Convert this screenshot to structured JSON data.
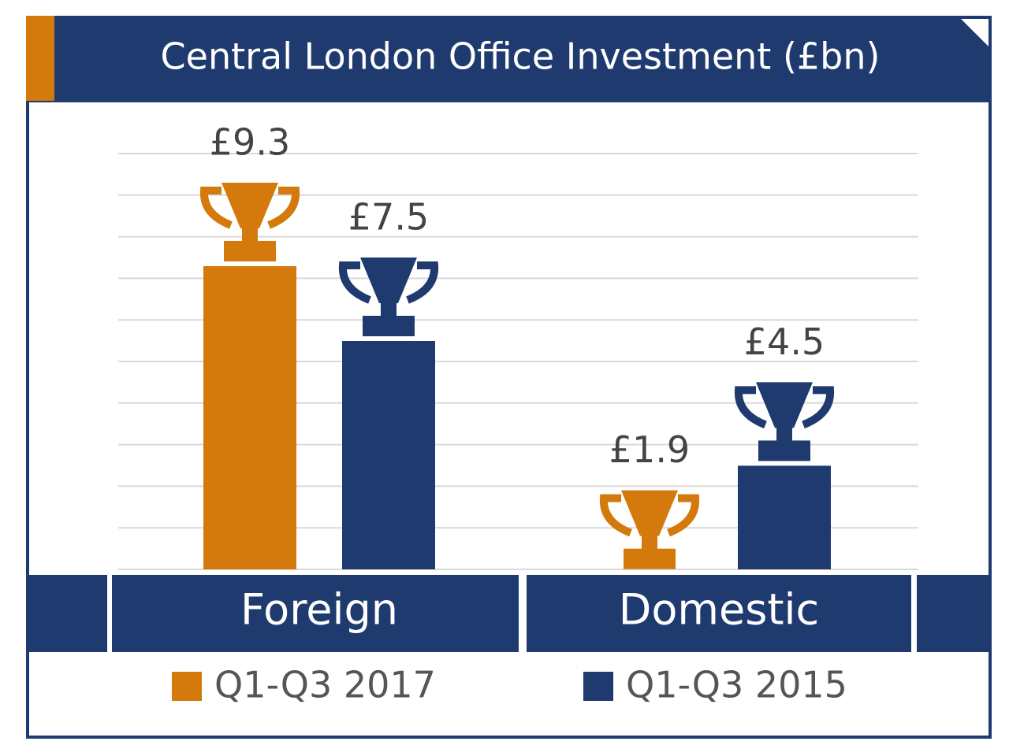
{
  "chart_data": {
    "type": "trophy-bar",
    "title": "Central London Office Investment (£bn)",
    "categories": [
      "Foreign",
      "Domestic"
    ],
    "series": [
      {
        "name": "Q1-Q3 2017",
        "color": "#d47a0c",
        "values": [
          9.3,
          1.9
        ],
        "value_labels": [
          "£9.3",
          "£1.9"
        ]
      },
      {
        "name": "Q1-Q3 2015",
        "color": "#1f3a6e",
        "values": [
          7.5,
          4.5
        ],
        "value_labels": [
          "£7.5",
          "£4.5"
        ]
      }
    ],
    "ylim": [
      0,
      10
    ],
    "yticks": [
      0,
      1,
      2,
      3,
      4,
      5,
      6,
      7,
      8,
      9,
      10
    ],
    "grid": true
  }
}
